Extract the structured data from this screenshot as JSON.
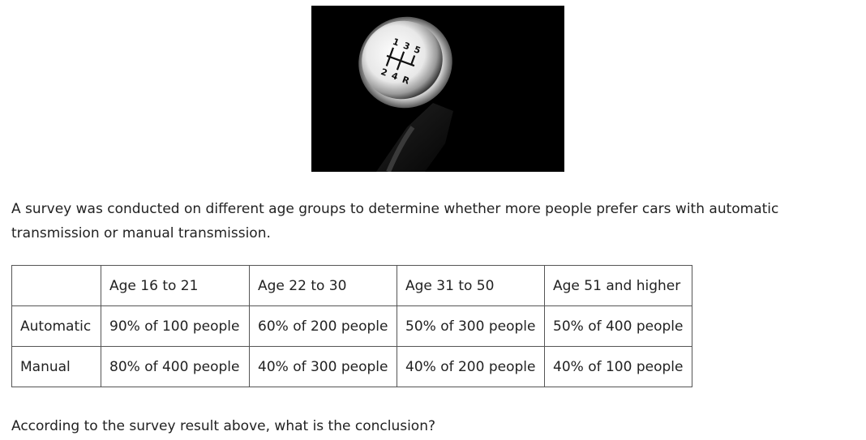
{
  "intro": "A survey was conducted on different age groups to determine whether more people prefer cars with automatic transmission or manual transmission.",
  "table": {
    "headers": [
      "",
      "Age 16 to 21",
      "Age 22 to 30",
      "Age 31 to 50",
      "Age 51 and higher"
    ],
    "rows": [
      {
        "label": "Automatic",
        "cells": [
          "90% of 100 people",
          "60% of 200 people",
          "50% of 300 people",
          "50% of 400 people"
        ]
      },
      {
        "label": "Manual",
        "cells": [
          "80% of 400 people",
          "40% of 300 people",
          "40% of 200 people",
          "40% of 100 people"
        ]
      }
    ]
  },
  "question": "According to the survey result above, what is the conclusion?",
  "photo": {
    "knob_labels": [
      "1",
      "3",
      "5",
      "2",
      "4",
      "R"
    ]
  }
}
